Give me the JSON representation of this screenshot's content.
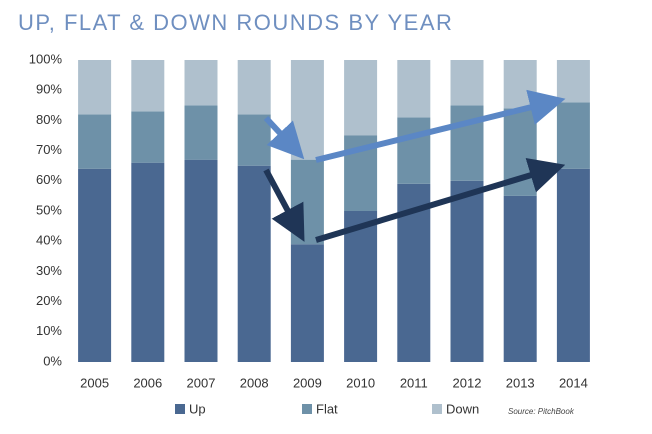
{
  "chart_data": {
    "type": "stacked_bar",
    "title": "UP, FLAT & DOWN ROUNDS BY YEAR",
    "categories": [
      "2005",
      "2006",
      "2007",
      "2008",
      "2009",
      "2010",
      "2011",
      "2012",
      "2013",
      "2014"
    ],
    "series": [
      {
        "name": "Up",
        "color": "#4a6891",
        "values": [
          64,
          66,
          67,
          65,
          39,
          50,
          59,
          60,
          55,
          64
        ]
      },
      {
        "name": "Flat",
        "color": "#6e91a8",
        "values": [
          18,
          17,
          18,
          17,
          28,
          25,
          22,
          25,
          29,
          22
        ]
      },
      {
        "name": "Down",
        "color": "#afc0cd",
        "values": [
          18,
          17,
          15,
          18,
          33,
          25,
          19,
          15,
          16,
          14
        ]
      }
    ],
    "ylim": [
      0,
      100
    ],
    "yticks": [
      {
        "value": 0,
        "label": "0%"
      },
      {
        "value": 10,
        "label": "10%"
      },
      {
        "value": 20,
        "label": "20%"
      },
      {
        "value": 30,
        "label": "30%"
      },
      {
        "value": 40,
        "label": "40%"
      },
      {
        "value": 50,
        "label": "50%"
      },
      {
        "value": 60,
        "label": "60%"
      },
      {
        "value": 70,
        "label": "70%"
      },
      {
        "value": 80,
        "label": "80%"
      },
      {
        "value": 90,
        "label": "90%"
      },
      {
        "value": 100,
        "label": "100%"
      }
    ],
    "grid": false,
    "source": "Source: PitchBook"
  }
}
